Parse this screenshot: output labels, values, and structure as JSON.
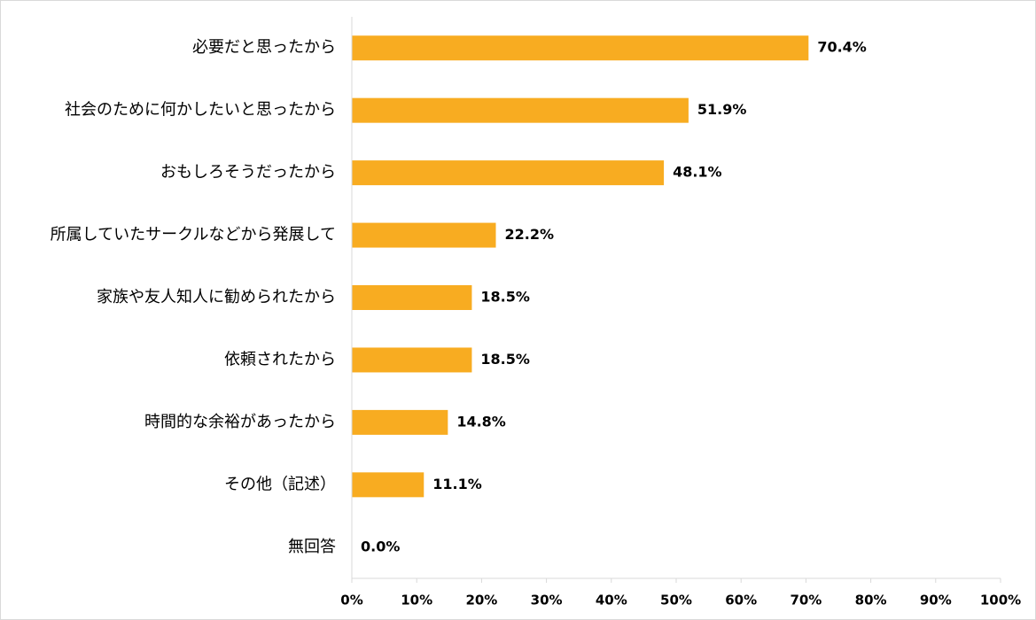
{
  "chart_data": {
    "type": "bar",
    "orientation": "horizontal",
    "categories": [
      "必要だと思ったから",
      "社会のために何かしたいと思ったから",
      "おもしろそうだったから",
      "所属していたサークルなどから発展して",
      "家族や友人知人に勧められたから",
      "依頼されたから",
      "時間的な余裕があったから",
      "その他（記述）",
      "無回答"
    ],
    "values": [
      70.4,
      51.9,
      48.1,
      22.2,
      18.5,
      18.5,
      14.8,
      11.1,
      0.0
    ],
    "value_labels": [
      "70.4%",
      "51.9%",
      "48.1%",
      "22.2%",
      "18.5%",
      "18.5%",
      "14.8%",
      "11.1%",
      "0.0%"
    ],
    "x_ticks": [
      "0%",
      "10%",
      "20%",
      "30%",
      "40%",
      "50%",
      "60%",
      "70%",
      "80%",
      "90%",
      "100%"
    ],
    "xlim": [
      0,
      100
    ],
    "title": "",
    "xlabel": "",
    "ylabel": "",
    "grid": false,
    "legend": "none",
    "bar_color": "#f8ac21"
  }
}
